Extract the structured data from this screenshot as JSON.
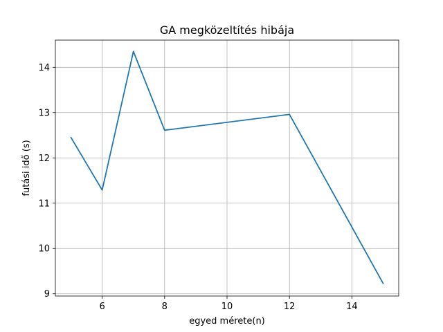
{
  "chart_data": {
    "type": "line",
    "title": "GA megközeltítés hibája",
    "xlabel": "egyed mérete(n)",
    "ylabel": "futási idő (s)",
    "x": [
      5,
      6,
      7,
      8,
      12,
      15
    ],
    "series": [
      {
        "values": [
          12.45,
          11.29,
          14.35,
          12.61,
          12.96,
          9.23
        ],
        "color": "#1f77b4"
      }
    ],
    "xlim": [
      4.5,
      15.5
    ],
    "ylim": [
      8.95,
      14.6
    ],
    "xticks": [
      6,
      8,
      10,
      12,
      14
    ],
    "yticks": [
      9,
      10,
      11,
      12,
      13,
      14
    ],
    "grid": true
  }
}
